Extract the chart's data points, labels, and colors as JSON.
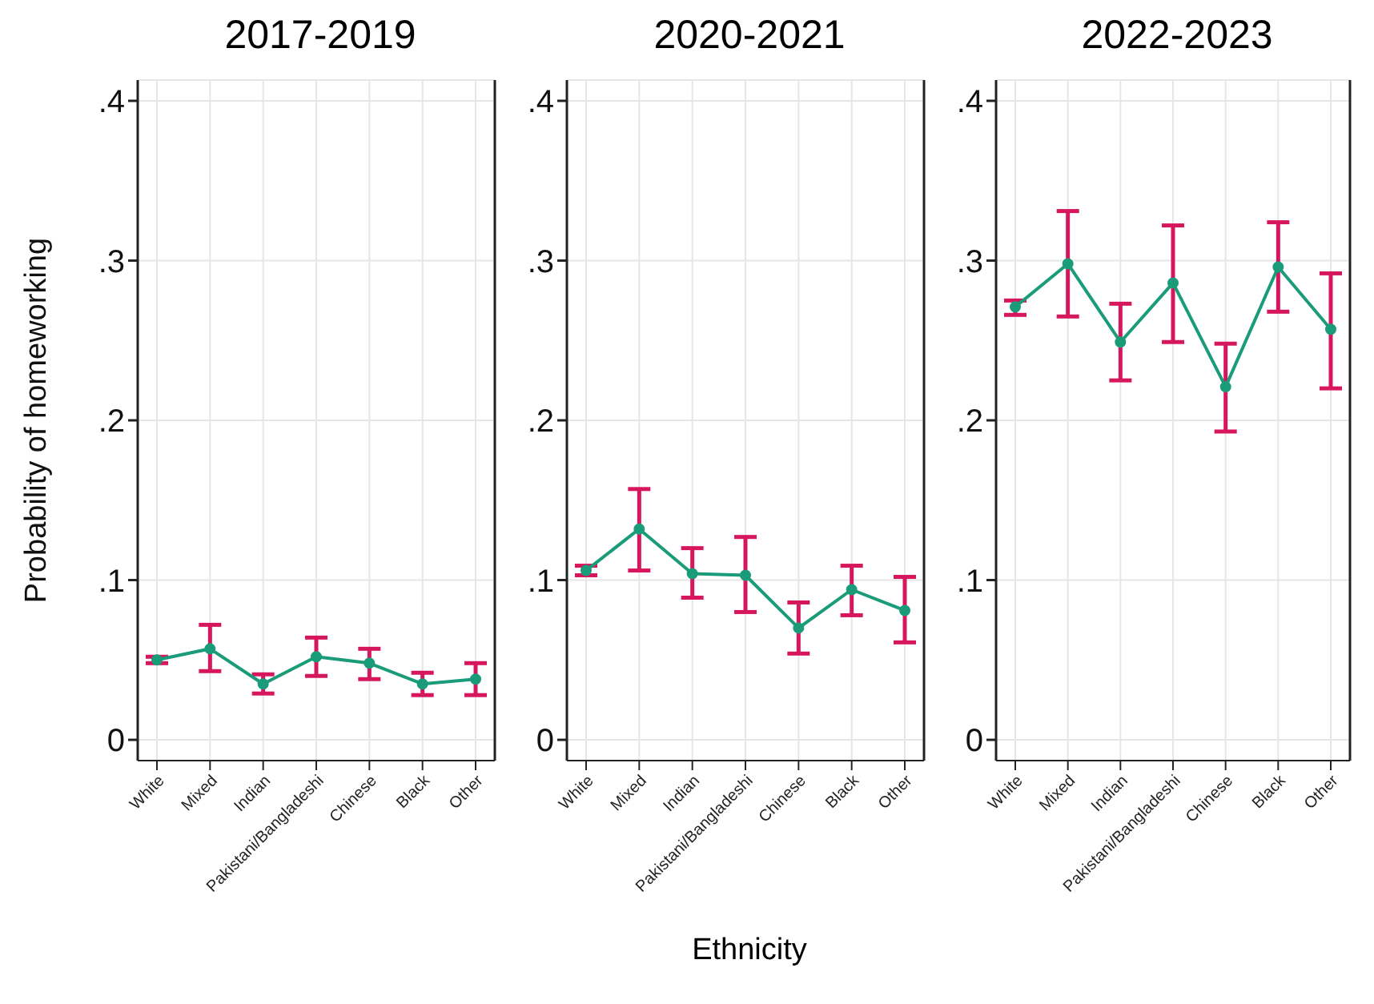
{
  "chart_data": [
    {
      "type": "line",
      "title": "2017-2019",
      "ylabel": "Probability of homeworking",
      "categories": [
        "White",
        "Mixed",
        "Indian",
        "Pakistani/Bangladeshi",
        "Chinese",
        "Black",
        "Other"
      ],
      "series": [
        {
          "color": "#1a9b79",
          "values": [
            0.05,
            0.057,
            0.035,
            0.052,
            0.048,
            0.035,
            0.038
          ],
          "errors": [
            [
              0.048,
              0.052
            ],
            [
              0.043,
              0.072
            ],
            [
              0.029,
              0.041
            ],
            [
              0.04,
              0.064
            ],
            [
              0.038,
              0.057
            ],
            [
              0.028,
              0.042
            ],
            [
              0.028,
              0.048
            ]
          ]
        }
      ],
      "ylim": [
        -0.013,
        0.413
      ],
      "yticks": [
        {
          "value": 0,
          "label": "0"
        },
        {
          "value": 0.1,
          "label": ".1"
        },
        {
          "value": 0.2,
          "label": ".2"
        },
        {
          "value": 0.3,
          "label": ".3"
        },
        {
          "value": 0.4,
          "label": ".4"
        }
      ],
      "grid": true,
      "marker": "circle",
      "line_style": "solid"
    },
    {
      "type": "line",
      "title": "2020-2021",
      "xlabel": "Ethnicity",
      "categories": [
        "White",
        "Mixed",
        "Indian",
        "Pakistani/Bangladeshi",
        "Chinese",
        "Black",
        "Other"
      ],
      "series": [
        {
          "color": "#1a9b79",
          "values": [
            0.106,
            0.132,
            0.104,
            0.103,
            0.07,
            0.094,
            0.081
          ],
          "errors": [
            [
              0.103,
              0.109
            ],
            [
              0.106,
              0.157
            ],
            [
              0.089,
              0.12
            ],
            [
              0.08,
              0.127
            ],
            [
              0.054,
              0.086
            ],
            [
              0.078,
              0.109
            ],
            [
              0.061,
              0.102
            ]
          ]
        }
      ],
      "ylim": [
        -0.013,
        0.413
      ],
      "yticks": [
        {
          "value": 0,
          "label": "0"
        },
        {
          "value": 0.1,
          "label": ".1"
        },
        {
          "value": 0.2,
          "label": ".2"
        },
        {
          "value": 0.3,
          "label": ".3"
        },
        {
          "value": 0.4,
          "label": ".4"
        }
      ],
      "grid": true,
      "marker": "circle",
      "line_style": "solid"
    },
    {
      "type": "line",
      "title": "2022-2023",
      "categories": [
        "White",
        "Mixed",
        "Indian",
        "Pakistani/Bangladeshi",
        "Chinese",
        "Black",
        "Other"
      ],
      "series": [
        {
          "color": "#1a9b79",
          "values": [
            0.271,
            0.298,
            0.249,
            0.286,
            0.221,
            0.296,
            0.257
          ],
          "errors": [
            [
              0.266,
              0.275
            ],
            [
              0.265,
              0.331
            ],
            [
              0.225,
              0.273
            ],
            [
              0.249,
              0.322
            ],
            [
              0.193,
              0.248
            ],
            [
              0.268,
              0.324
            ],
            [
              0.22,
              0.292
            ]
          ]
        }
      ],
      "ylim": [
        -0.013,
        0.413
      ],
      "yticks": [
        {
          "value": 0,
          "label": "0"
        },
        {
          "value": 0.1,
          "label": ".1"
        },
        {
          "value": 0.2,
          "label": ".2"
        },
        {
          "value": 0.3,
          "label": ".3"
        },
        {
          "value": 0.4,
          "label": ".4"
        }
      ],
      "grid": true,
      "marker": "circle",
      "line_style": "solid"
    }
  ]
}
